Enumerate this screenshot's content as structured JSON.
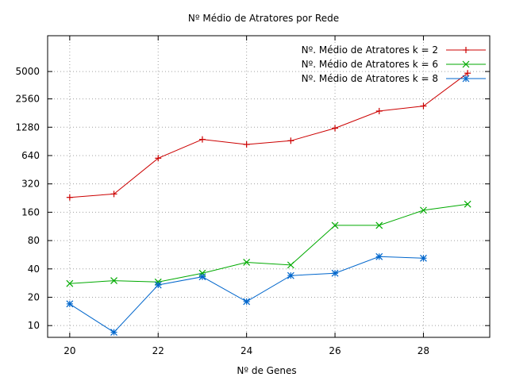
{
  "chart_data": {
    "type": "line",
    "title": "Nº Médio de Atratores por Rede",
    "xlabel": "Nº de Genes",
    "ylabel": "",
    "y_scale": "log2",
    "xlim": [
      19.5,
      29.5
    ],
    "ylim": [
      7.5,
      12000
    ],
    "x_ticks": [
      20,
      22,
      24,
      26,
      28
    ],
    "y_ticks": [
      10,
      20,
      40,
      80,
      160,
      320,
      640,
      1280,
      2560,
      5000
    ],
    "grid": true,
    "legend_position": "top-right",
    "series": [
      {
        "name": "Nº. Médio de Atratores k = 2",
        "color": "#cc0000",
        "marker": "plus",
        "x": [
          20,
          21,
          22,
          23,
          24,
          25,
          26,
          27,
          28,
          29
        ],
        "y": [
          230,
          250,
          600,
          950,
          840,
          920,
          1250,
          1900,
          2150,
          4800
        ]
      },
      {
        "name": "Nº. Médio de Atratores k = 6",
        "color": "#00aa00",
        "marker": "x",
        "x": [
          20,
          21,
          22,
          23,
          24,
          25,
          26,
          27,
          28,
          29
        ],
        "y": [
          28,
          30,
          29,
          36,
          47,
          44,
          116,
          116,
          168,
          195
        ]
      },
      {
        "name": "Nº. Médio de Atratores k = 8",
        "color": "#0066cc",
        "marker": "star",
        "x": [
          20,
          21,
          22,
          23,
          24,
          25,
          26,
          27,
          28
        ],
        "y": [
          17,
          8.5,
          27,
          33,
          18,
          34,
          36,
          54,
          52
        ]
      }
    ]
  }
}
